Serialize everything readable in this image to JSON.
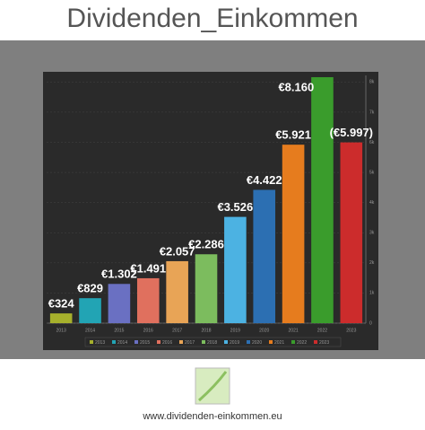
{
  "chart_data": {
    "type": "bar",
    "title": "Dividenden_Einkommen",
    "categories": [
      "2013",
      "2014",
      "2015",
      "2016",
      "2017",
      "2018",
      "2019",
      "2020",
      "2021",
      "2022",
      "2023"
    ],
    "values": [
      324,
      829,
      1302,
      1491,
      2057,
      2286,
      3526,
      4422,
      5921,
      8160,
      5997
    ],
    "value_labels": [
      "€324",
      "€829",
      "€1.302",
      "€1.491",
      "€2.057",
      "€2.286",
      "€3.526",
      "€4.422",
      "€5.921",
      "€8.160",
      "(€5.997)"
    ],
    "colors": [
      "#a6b02c",
      "#22a4b4",
      "#6a70c2",
      "#e0705e",
      "#e8a456",
      "#7cbc5e",
      "#4cb2e2",
      "#2c6fb2",
      "#e67c1e",
      "#3a9c2c",
      "#cc2c2c"
    ],
    "ylim": [
      0,
      8100
    ],
    "yticks": [
      {
        "value": 0,
        "label": "0"
      },
      {
        "value": 1000,
        "label": "1k"
      },
      {
        "value": 2000,
        "label": "2k"
      },
      {
        "value": 3000,
        "label": "3k"
      },
      {
        "value": 4000,
        "label": "4k"
      },
      {
        "value": 5000,
        "label": "5k"
      },
      {
        "value": 6000,
        "label": "6k"
      },
      {
        "value": 7000,
        "label": "7k"
      },
      {
        "value": 8000,
        "label": "8k"
      }
    ],
    "grid": true,
    "legend": "bottom"
  },
  "footer": "www.dividenden-einkommen.eu"
}
